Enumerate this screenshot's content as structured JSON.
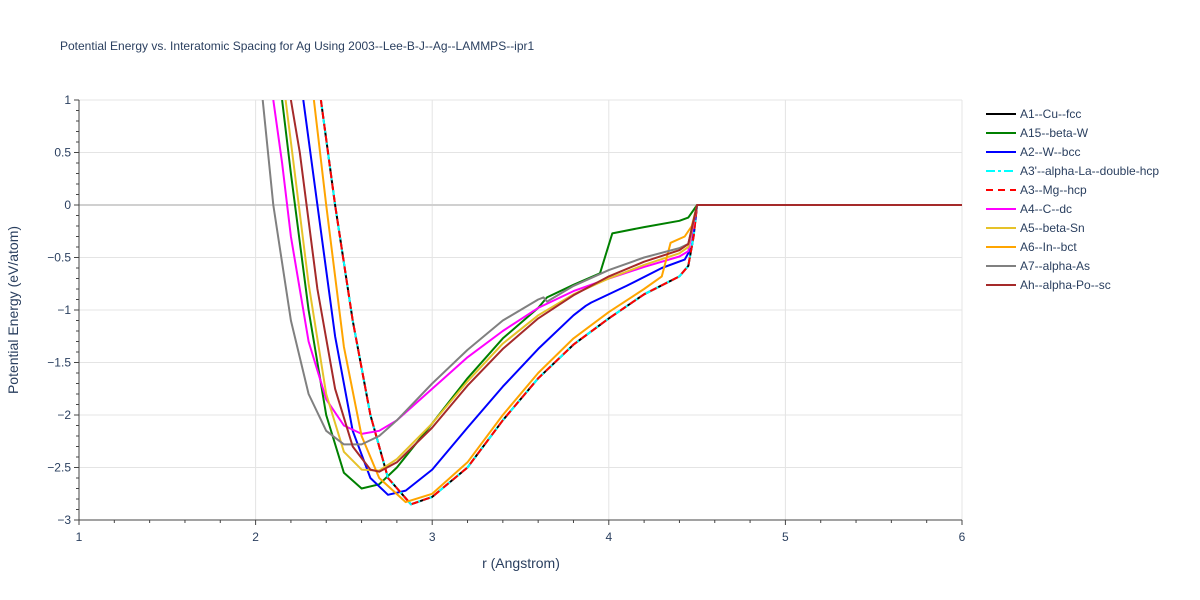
{
  "chart_data": {
    "type": "line",
    "title": "Potential Energy vs. Interatomic Spacing for Ag Using 2003--Lee-B-J--Ag--LAMMPS--ipr1",
    "xlabel": "r (Angstrom)",
    "ylabel": "Potential Energy (eV/atom)",
    "xlim": [
      1,
      6
    ],
    "ylim": [
      -3,
      1
    ],
    "x_ticks": [
      1,
      2,
      3,
      4,
      5,
      6
    ],
    "y_ticks": [
      1,
      0.5,
      0,
      -0.5,
      -1,
      -1.5,
      -2,
      -2.5,
      -3
    ],
    "x_tick_labels": [
      "1",
      "2",
      "3",
      "4",
      "5",
      "6"
    ],
    "y_tick_labels": [
      "1",
      "0.5",
      "0",
      "−0.5",
      "−1",
      "−1.5",
      "−2",
      "−2.5",
      "−3"
    ],
    "grid": true,
    "legend_position": "right",
    "series": [
      {
        "name": "A1--Cu--fcc",
        "color": "#000000",
        "dash": "solid",
        "x": [
          2.37,
          2.45,
          2.55,
          2.65,
          2.75,
          2.88,
          3.0,
          3.2,
          3.4,
          3.6,
          3.8,
          4.0,
          4.2,
          4.4,
          4.45,
          4.48,
          4.5,
          6.0
        ],
        "y": [
          1.0,
          0.0,
          -1.1,
          -2.0,
          -2.6,
          -2.85,
          -2.78,
          -2.5,
          -2.05,
          -1.65,
          -1.33,
          -1.08,
          -0.85,
          -0.68,
          -0.58,
          -0.3,
          0.0,
          0.0
        ]
      },
      {
        "name": "A15--beta-W",
        "color": "#008000",
        "dash": "solid",
        "x": [
          2.15,
          2.2,
          2.3,
          2.4,
          2.5,
          2.6,
          2.7,
          2.8,
          3.0,
          3.2,
          3.4,
          3.6,
          3.65,
          3.8,
          3.95,
          4.02,
          4.2,
          4.4,
          4.45,
          4.5,
          6.0
        ],
        "y": [
          1.0,
          0.3,
          -1.0,
          -2.0,
          -2.55,
          -2.7,
          -2.66,
          -2.5,
          -2.08,
          -1.65,
          -1.27,
          -0.98,
          -0.88,
          -0.76,
          -0.65,
          -0.27,
          -0.21,
          -0.15,
          -0.12,
          0.0,
          0.0
        ]
      },
      {
        "name": "A2--W--bcc",
        "color": "#0000ff",
        "dash": "solid",
        "x": [
          2.27,
          2.35,
          2.45,
          2.55,
          2.65,
          2.75,
          2.85,
          3.0,
          3.2,
          3.4,
          3.6,
          3.8,
          3.87,
          3.9,
          4.1,
          4.3,
          4.43,
          4.47,
          4.5,
          6.0
        ],
        "y": [
          1.0,
          0.0,
          -1.25,
          -2.15,
          -2.6,
          -2.76,
          -2.72,
          -2.52,
          -2.12,
          -1.73,
          -1.37,
          -1.05,
          -0.96,
          -0.93,
          -0.77,
          -0.6,
          -0.52,
          -0.4,
          0.0,
          0.0
        ]
      },
      {
        "name": "A3'--alpha-La--double-hcp",
        "color": "#00ffff",
        "dash": "dashdot",
        "x": [
          2.37,
          2.45,
          2.55,
          2.65,
          2.75,
          2.88,
          3.0,
          3.2,
          3.4,
          3.6,
          3.8,
          4.0,
          4.2,
          4.4,
          4.45,
          4.48,
          4.5,
          6.0
        ],
        "y": [
          1.0,
          0.0,
          -1.1,
          -2.0,
          -2.6,
          -2.85,
          -2.78,
          -2.5,
          -2.05,
          -1.65,
          -1.33,
          -1.08,
          -0.85,
          -0.68,
          -0.58,
          -0.3,
          0.0,
          0.0
        ]
      },
      {
        "name": "A3--Mg--hcp",
        "color": "#ff0000",
        "dash": "dash",
        "x": [
          2.37,
          2.45,
          2.55,
          2.65,
          2.75,
          2.88,
          3.0,
          3.2,
          3.4,
          3.6,
          3.8,
          4.0,
          4.2,
          4.4,
          4.45,
          4.48,
          4.5,
          6.0
        ],
        "y": [
          1.0,
          0.0,
          -1.1,
          -2.0,
          -2.6,
          -2.85,
          -2.78,
          -2.5,
          -2.05,
          -1.65,
          -1.33,
          -1.08,
          -0.85,
          -0.68,
          -0.58,
          -0.3,
          0.0,
          0.0
        ]
      },
      {
        "name": "A4--C--dc",
        "color": "#ff00ff",
        "dash": "solid",
        "x": [
          2.1,
          2.15,
          2.2,
          2.3,
          2.4,
          2.5,
          2.6,
          2.7,
          2.8,
          3.0,
          3.2,
          3.4,
          3.6,
          3.8,
          4.0,
          4.2,
          4.4,
          4.45,
          4.5,
          6.0
        ],
        "y": [
          1.0,
          0.4,
          -0.3,
          -1.3,
          -1.85,
          -2.1,
          -2.18,
          -2.15,
          -2.05,
          -1.75,
          -1.45,
          -1.2,
          -0.98,
          -0.82,
          -0.7,
          -0.59,
          -0.49,
          -0.44,
          0.0,
          0.0
        ]
      },
      {
        "name": "A5--beta-Sn",
        "color": "#e6c229",
        "dash": "solid",
        "x": [
          2.17,
          2.2,
          2.3,
          2.4,
          2.5,
          2.6,
          2.7,
          2.8,
          3.0,
          3.2,
          3.4,
          3.6,
          3.8,
          4.0,
          4.2,
          4.4,
          4.45,
          4.5,
          6.0
        ],
        "y": [
          1.0,
          0.6,
          -0.75,
          -1.8,
          -2.35,
          -2.52,
          -2.53,
          -2.42,
          -2.08,
          -1.68,
          -1.32,
          -1.05,
          -0.85,
          -0.7,
          -0.57,
          -0.46,
          -0.4,
          0.0,
          0.0
        ]
      },
      {
        "name": "A6--In--bct",
        "color": "#ffa500",
        "dash": "solid",
        "x": [
          2.33,
          2.4,
          2.5,
          2.6,
          2.7,
          2.85,
          3.0,
          3.2,
          3.4,
          3.6,
          3.8,
          4.0,
          4.2,
          4.3,
          4.35,
          4.43,
          4.47,
          4.5,
          6.0
        ],
        "y": [
          1.0,
          0.0,
          -1.35,
          -2.2,
          -2.6,
          -2.83,
          -2.75,
          -2.45,
          -2.0,
          -1.6,
          -1.27,
          -1.02,
          -0.8,
          -0.68,
          -0.36,
          -0.3,
          -0.2,
          0.0,
          0.0
        ]
      },
      {
        "name": "A7--alpha-As",
        "color": "#808080",
        "dash": "solid",
        "x": [
          2.04,
          2.1,
          2.2,
          2.3,
          2.4,
          2.5,
          2.6,
          2.7,
          2.8,
          3.0,
          3.2,
          3.4,
          3.6,
          3.63,
          3.65,
          3.8,
          4.0,
          4.2,
          4.4,
          4.45,
          4.5,
          6.0
        ],
        "y": [
          1.0,
          0.0,
          -1.1,
          -1.8,
          -2.15,
          -2.28,
          -2.28,
          -2.2,
          -2.05,
          -1.7,
          -1.38,
          -1.1,
          -0.9,
          -0.88,
          -0.92,
          -0.77,
          -0.62,
          -0.5,
          -0.41,
          -0.37,
          0.0,
          0.0
        ]
      },
      {
        "name": "Ah--alpha-Po--sc",
        "color": "#a52a2a",
        "dash": "solid",
        "x": [
          2.2,
          2.25,
          2.35,
          2.45,
          2.55,
          2.65,
          2.7,
          2.8,
          3.0,
          3.2,
          3.4,
          3.6,
          3.8,
          4.0,
          4.2,
          4.4,
          4.45,
          4.5,
          6.0
        ],
        "y": [
          1.0,
          0.5,
          -0.8,
          -1.75,
          -2.3,
          -2.52,
          -2.54,
          -2.45,
          -2.12,
          -1.72,
          -1.37,
          -1.08,
          -0.86,
          -0.68,
          -0.54,
          -0.43,
          -0.37,
          0.0,
          0.0
        ]
      }
    ]
  }
}
